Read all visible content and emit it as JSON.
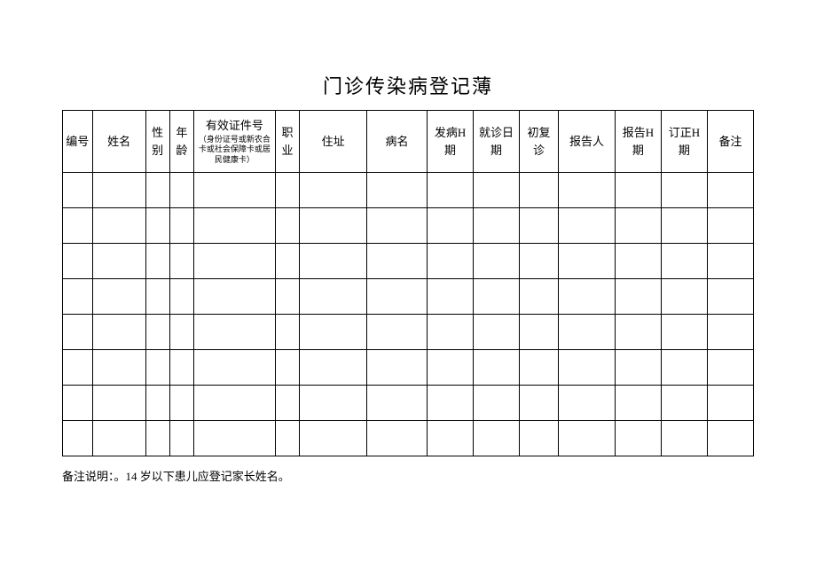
{
  "title": "门诊传染病登记薄",
  "columns": [
    {
      "label": "编号",
      "sub": ""
    },
    {
      "label": "姓名",
      "sub": ""
    },
    {
      "label": "性别",
      "sub": ""
    },
    {
      "label": "年龄",
      "sub": ""
    },
    {
      "label": "有效证件号",
      "sub": "（身份证号或新农合卡或社会保障卡或居民健康卡）"
    },
    {
      "label": "职业",
      "sub": ""
    },
    {
      "label": "住址",
      "sub": ""
    },
    {
      "label": "病名",
      "sub": ""
    },
    {
      "label": "发病H期",
      "sub": ""
    },
    {
      "label": "就诊日期",
      "sub": ""
    },
    {
      "label": "初复诊",
      "sub": ""
    },
    {
      "label": "报告人",
      "sub": ""
    },
    {
      "label": "报告H期",
      "sub": ""
    },
    {
      "label": "订正H期",
      "sub": ""
    },
    {
      "label": "备注",
      "sub": ""
    }
  ],
  "emptyRows": 8,
  "footnote": "备注说明：。14 岁以下患儿应登记家长姓名。",
  "styling": {
    "border_color": "#000000",
    "background_color": "#ffffff",
    "title_fontsize": 22,
    "header_fontsize": 13,
    "subtext_fontsize": 9,
    "footnote_fontsize": 13,
    "header_row_height": 70,
    "data_row_height": 40
  }
}
